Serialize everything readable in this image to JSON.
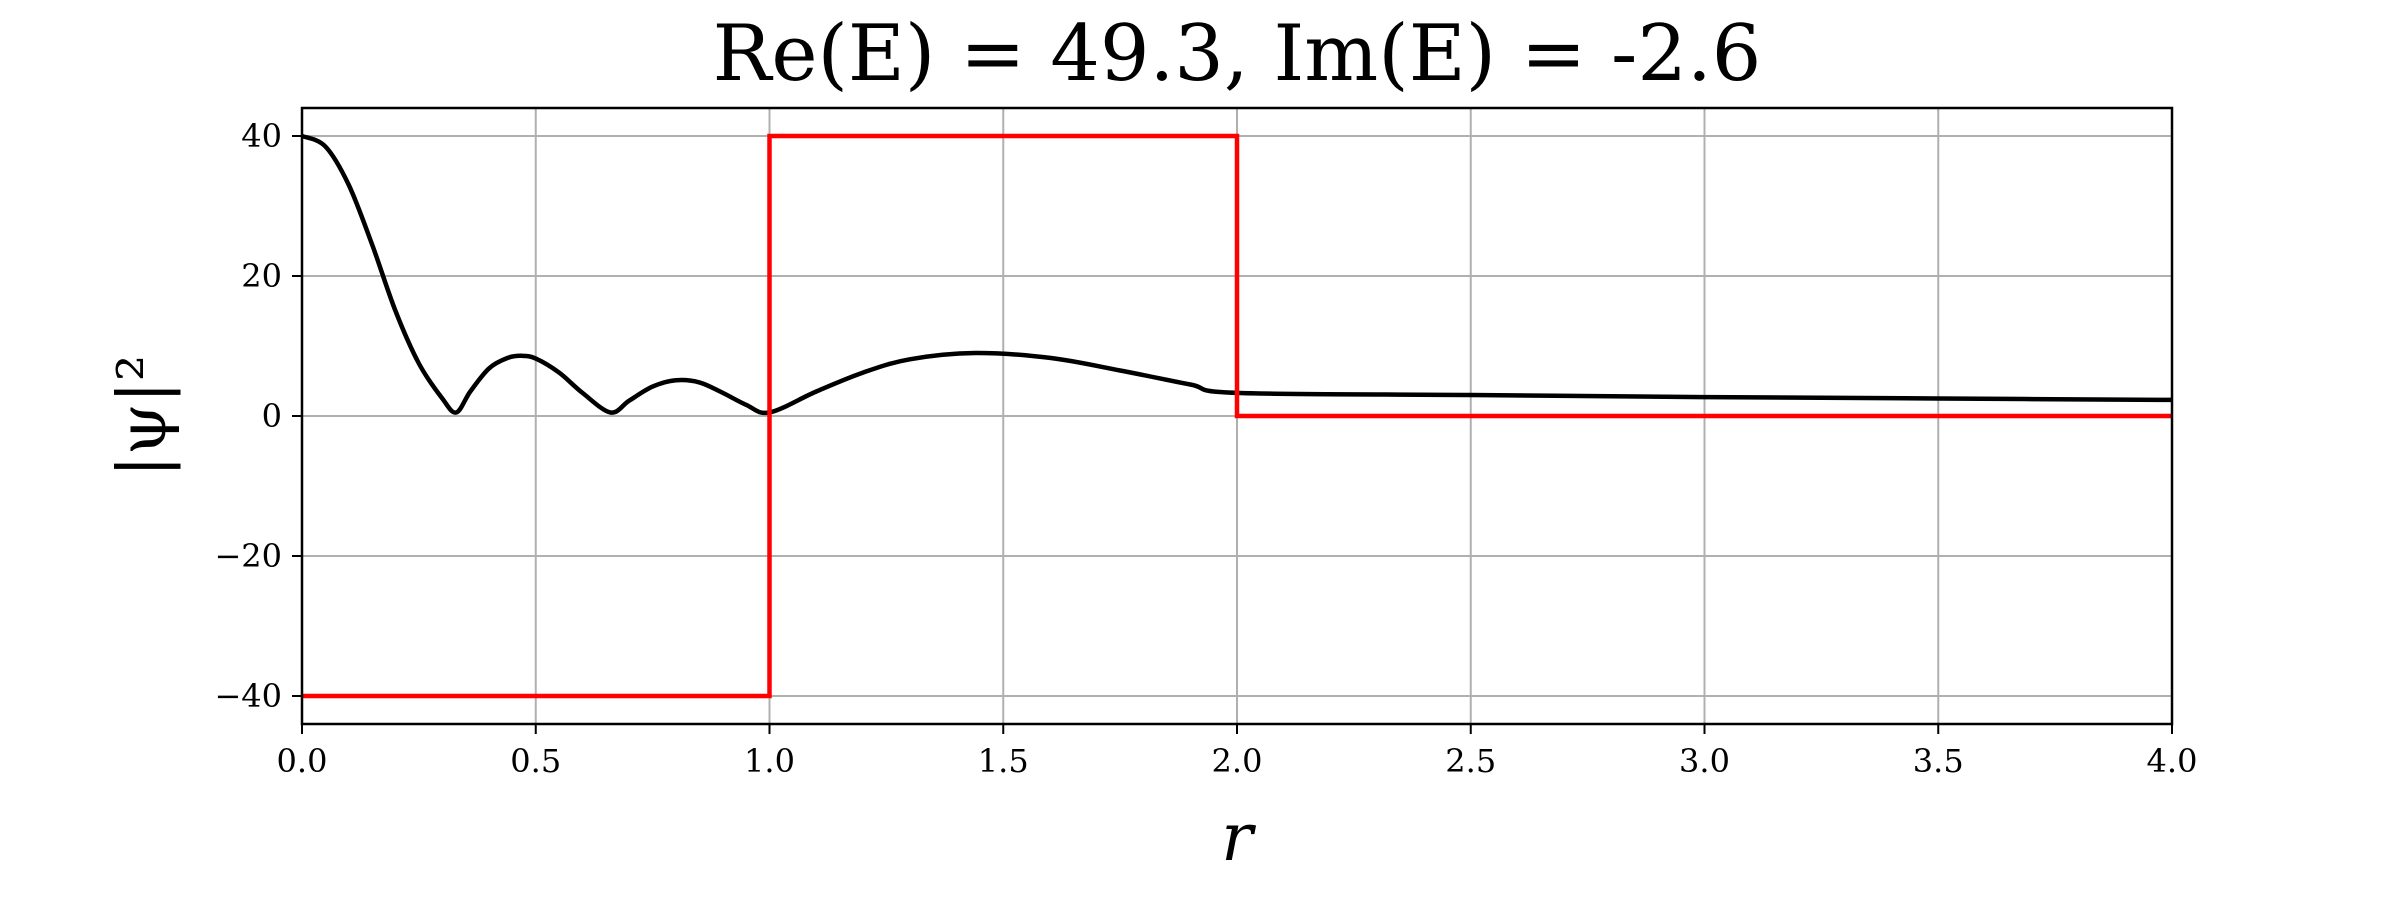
{
  "chart_data": {
    "type": "line",
    "title": "Re(E) = 49.3, Im(E) = -2.6",
    "xlabel": "r",
    "ylabel": "|ψ|²",
    "xlim": [
      0,
      4
    ],
    "ylim": [
      -44,
      44
    ],
    "xticks": [
      0,
      0.5,
      1,
      1.5,
      2,
      2.5,
      3,
      3.5,
      4
    ],
    "xtick_labels": [
      "0.0",
      "0.5",
      "1.0",
      "1.5",
      "2.0",
      "2.5",
      "3.0",
      "3.5",
      "4.0"
    ],
    "yticks": [
      40,
      20,
      0,
      -20,
      -40
    ],
    "ytick_labels": [
      "40",
      "20",
      "0",
      "−20",
      "−40"
    ],
    "grid": true,
    "series": [
      {
        "color": "#000000",
        "x": [
          0,
          0.05,
          0.1,
          0.15,
          0.2,
          0.25,
          0.3,
          0.33,
          0.36,
          0.4,
          0.44,
          0.47,
          0.5,
          0.55,
          0.6,
          0.66,
          0.7,
          0.75,
          0.8,
          0.85,
          0.9,
          0.95,
          1.0,
          1.1,
          1.2,
          1.3,
          1.44,
          1.6,
          1.75,
          1.9,
          2.0,
          2.5,
          3.0,
          3.5,
          4.0
        ],
        "values": [
          40,
          38.5,
          33,
          24.5,
          15,
          7.5,
          2.5,
          0.5,
          3.5,
          6.8,
          8.3,
          8.6,
          8.2,
          6.2,
          3.3,
          0.5,
          2.2,
          4.2,
          5.1,
          4.8,
          3.3,
          1.6,
          0.5,
          3.5,
          6.2,
          8.1,
          9.0,
          8.3,
          6.5,
          4.5,
          3.3,
          3.0,
          2.7,
          2.5,
          2.3
        ]
      },
      {
        "color": "#ff0000",
        "x": [
          0,
          1.0,
          1.0,
          2.0,
          2.0,
          4.0
        ],
        "values": [
          -40,
          -40,
          40,
          40,
          0,
          0
        ]
      }
    ]
  }
}
